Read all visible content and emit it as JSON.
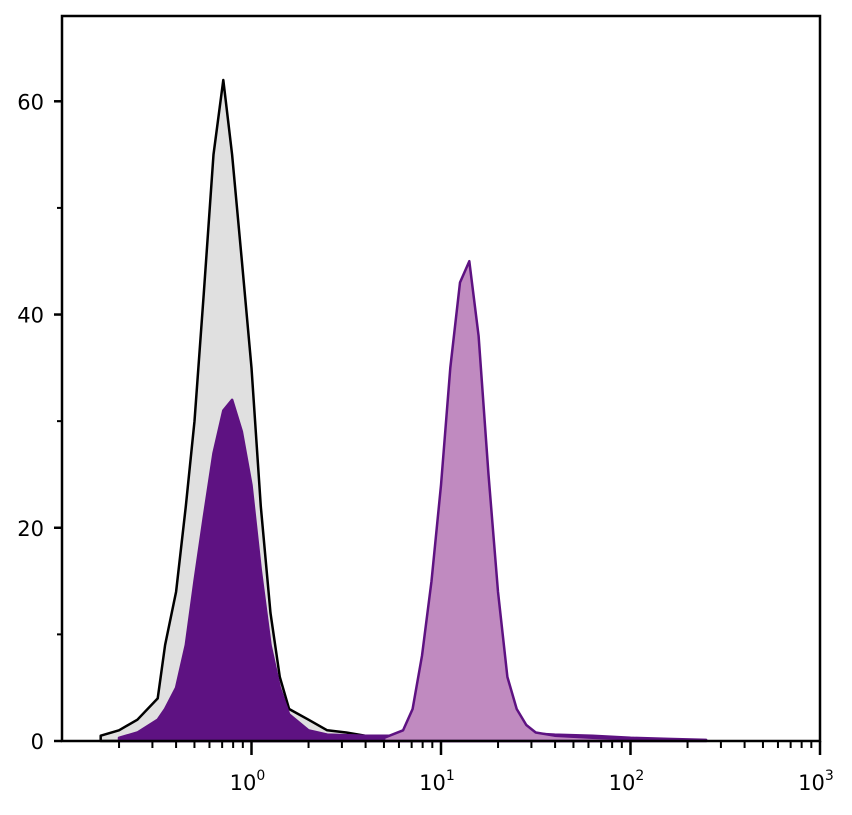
{
  "chart_data": {
    "type": "area",
    "title": "",
    "xlabel": "",
    "ylabel": "",
    "x_scale": "log",
    "xlim": [
      0.1,
      1000
    ],
    "ylim": [
      0,
      68
    ],
    "grid": false,
    "legend": "none",
    "y_ticks": [
      {
        "value": 0,
        "label": "0"
      },
      {
        "value": 20,
        "label": "20"
      },
      {
        "value": 40,
        "label": "40"
      },
      {
        "value": 60,
        "label": "60"
      }
    ],
    "y_minor_ticks": [
      10,
      30,
      50
    ],
    "x_ticks": [
      {
        "value": 1,
        "base": "10",
        "exp": "0"
      },
      {
        "value": 10,
        "base": "10",
        "exp": "1"
      },
      {
        "value": 100,
        "base": "10",
        "exp": "2"
      },
      {
        "value": 1000,
        "base": "10",
        "exp": "3"
      }
    ],
    "series": [
      {
        "fill": "#e0e0e0",
        "stroke": "#000000",
        "x": [
          0.16,
          0.2,
          0.25,
          0.32,
          0.35,
          0.4,
          0.45,
          0.5,
          0.56,
          0.63,
          0.71,
          0.79,
          0.89,
          1,
          1.12,
          1.26,
          1.41,
          1.58,
          2,
          2.51,
          3.16,
          3.98,
          6.31,
          10
        ],
        "y": [
          0.5,
          1,
          2,
          4,
          9,
          14,
          22,
          30,
          42,
          55,
          62,
          55,
          45,
          35,
          22,
          12,
          6,
          3,
          2,
          1,
          0.8,
          0.5,
          0.3,
          0.2
        ]
      },
      {
        "fill": "#5e1282",
        "stroke": "#5e1282",
        "x": [
          0.2,
          0.25,
          0.32,
          0.35,
          0.4,
          0.45,
          0.5,
          0.56,
          0.63,
          0.71,
          0.79,
          0.89,
          1,
          1.12,
          1.26,
          1.41,
          1.58,
          2,
          2.51,
          3.98,
          6.31,
          10,
          15.8,
          25.1,
          39.8,
          63.1,
          100,
          158,
          251
        ],
        "y": [
          0.3,
          0.8,
          2,
          3,
          5,
          9,
          15,
          21,
          27,
          31,
          32,
          29,
          24,
          16,
          9,
          5,
          2.5,
          1,
          0.6,
          0.5,
          0.5,
          0.6,
          0.5,
          0.8,
          0.6,
          0.5,
          0.3,
          0.2,
          0.1
        ]
      },
      {
        "fill": "#c08ac0",
        "stroke": "#5e1282",
        "x": [
          5.01,
          6.31,
          7.08,
          7.94,
          8.91,
          10,
          11.2,
          12.6,
          14.1,
          15.8,
          17.8,
          20,
          22.4,
          25.1,
          28.2,
          31.6,
          39.8,
          63.1,
          100
        ],
        "y": [
          0.3,
          1,
          3,
          8,
          15,
          24,
          35,
          43,
          45,
          38,
          25,
          14,
          6,
          3,
          1.5,
          0.8,
          0.5,
          0.3,
          0.2
        ]
      }
    ]
  }
}
